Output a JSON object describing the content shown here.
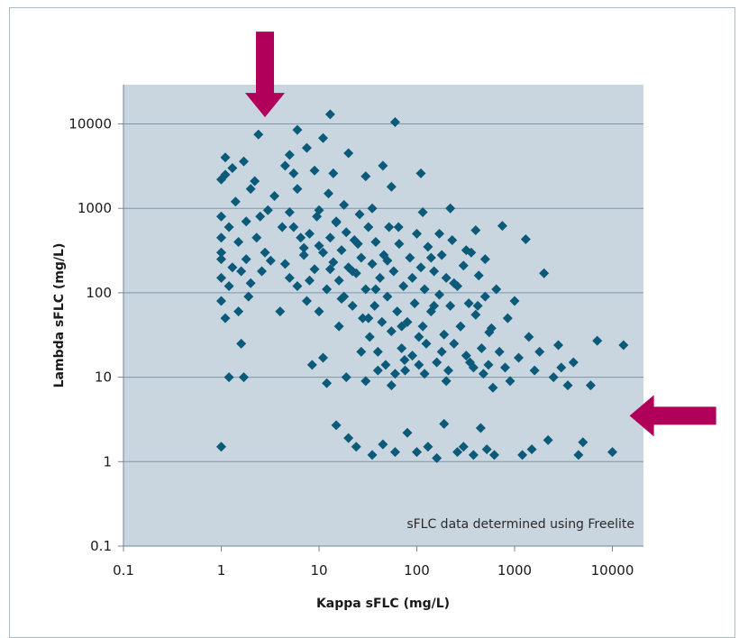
{
  "chart_data": {
    "type": "scatter",
    "title": "",
    "xlabel": "Kappa sFLC (mg/L)",
    "ylabel": "Lambda sFLC (mg/L)",
    "x_scale": "log",
    "y_scale": "log",
    "xlim": [
      0.1,
      20000
    ],
    "ylim": [
      0.1,
      50000
    ],
    "x_ticks": [
      "0.1",
      "1",
      "10",
      "100",
      "1000",
      "10000"
    ],
    "y_ticks": [
      "0.1",
      "1",
      "10",
      "100",
      "1000",
      "10000"
    ],
    "grid": "horizontal",
    "annotation": "sFLC data determined using Freelite",
    "arrows": [
      {
        "direction": "down",
        "points_to": [
          2.8,
          12000
        ]
      },
      {
        "direction": "left",
        "points_to": [
          15000,
          3.5
        ]
      }
    ],
    "colors": {
      "plot_background": "#c9d6df",
      "marker": "#0b5a79",
      "arrow": "#b0005a",
      "gridline": "#7d96aa"
    },
    "series": [
      {
        "marker": "diamond",
        "points": [
          [
            1,
            1.5
          ],
          [
            1,
            80
          ],
          [
            1,
            150
          ],
          [
            1,
            250
          ],
          [
            1,
            300
          ],
          [
            1,
            450
          ],
          [
            1,
            800
          ],
          [
            1,
            2200
          ],
          [
            1.1,
            2500
          ],
          [
            1.1,
            4000
          ],
          [
            1.1,
            50
          ],
          [
            1.2,
            10
          ],
          [
            1.2,
            120
          ],
          [
            1.2,
            600
          ],
          [
            1.3,
            200
          ],
          [
            1.3,
            3000
          ],
          [
            1.4,
            1200
          ],
          [
            1.5,
            400
          ],
          [
            1.5,
            60
          ],
          [
            1.6,
            25
          ],
          [
            1.6,
            180
          ],
          [
            1.7,
            10
          ],
          [
            1.7,
            3600
          ],
          [
            1.8,
            700
          ],
          [
            1.8,
            250
          ],
          [
            1.9,
            90
          ],
          [
            2,
            1700
          ],
          [
            2,
            130
          ],
          [
            2.2,
            2100
          ],
          [
            2.3,
            450
          ],
          [
            2.4,
            7500
          ],
          [
            2.5,
            800
          ],
          [
            2.6,
            180
          ],
          [
            2.8,
            300
          ],
          [
            3,
            950
          ],
          [
            3.2,
            240
          ],
          [
            3.5,
            1400
          ],
          [
            4,
            60
          ],
          [
            4.2,
            600
          ],
          [
            4.5,
            3200
          ],
          [
            5,
            4300
          ],
          [
            5,
            900
          ],
          [
            5,
            150
          ],
          [
            5.5,
            2600
          ],
          [
            6,
            8500
          ],
          [
            6,
            1700
          ],
          [
            6.5,
            450
          ],
          [
            7,
            280
          ],
          [
            7.5,
            5200
          ],
          [
            8,
            140
          ],
          [
            8.5,
            14
          ],
          [
            9,
            2800
          ],
          [
            9.5,
            800
          ],
          [
            10,
            360
          ],
          [
            10,
            60
          ],
          [
            11,
            6800
          ],
          [
            11,
            17
          ],
          [
            12,
            8.5
          ],
          [
            12.5,
            1500
          ],
          [
            13,
            13000
          ],
          [
            13,
            190
          ],
          [
            14,
            2600
          ],
          [
            15,
            700
          ],
          [
            15,
            2.7
          ],
          [
            16,
            40
          ],
          [
            17,
            85
          ],
          [
            18,
            1100
          ],
          [
            19,
            10
          ],
          [
            20,
            4500
          ],
          [
            20,
            1.9
          ],
          [
            22,
            180
          ],
          [
            24,
            1.5
          ],
          [
            25,
            380
          ],
          [
            27,
            20
          ],
          [
            30,
            2400
          ],
          [
            30,
            9
          ],
          [
            32,
            50
          ],
          [
            35,
            1000
          ],
          [
            35,
            1.2
          ],
          [
            38,
            110
          ],
          [
            40,
            12
          ],
          [
            45,
            3200
          ],
          [
            45,
            1.6
          ],
          [
            50,
            240
          ],
          [
            55,
            1800
          ],
          [
            55,
            8
          ],
          [
            60,
            10500
          ],
          [
            60,
            1.3
          ],
          [
            65,
            600
          ],
          [
            70,
            40
          ],
          [
            75,
            16
          ],
          [
            80,
            2.2
          ],
          [
            90,
            150
          ],
          [
            100,
            1.3
          ],
          [
            105,
            30
          ],
          [
            110,
            2600
          ],
          [
            115,
            900
          ],
          [
            120,
            11
          ],
          [
            130,
            1.5
          ],
          [
            140,
            260
          ],
          [
            150,
            70
          ],
          [
            160,
            1.1
          ],
          [
            170,
            500
          ],
          [
            180,
            20
          ],
          [
            190,
            2.8
          ],
          [
            200,
            9
          ],
          [
            220,
            1000
          ],
          [
            240,
            130
          ],
          [
            260,
            1.3
          ],
          [
            280,
            40
          ],
          [
            300,
            1.5
          ],
          [
            320,
            320
          ],
          [
            350,
            15
          ],
          [
            380,
            1.2
          ],
          [
            400,
            550
          ],
          [
            420,
            70
          ],
          [
            450,
            2.5
          ],
          [
            480,
            11
          ],
          [
            500,
            250
          ],
          [
            520,
            1.4
          ],
          [
            550,
            34
          ],
          [
            600,
            7.5
          ],
          [
            620,
            1.2
          ],
          [
            650,
            110
          ],
          [
            700,
            20
          ],
          [
            750,
            620
          ],
          [
            800,
            13
          ],
          [
            850,
            50
          ],
          [
            900,
            9
          ],
          [
            1000,
            80
          ],
          [
            1100,
            17
          ],
          [
            1200,
            1.2
          ],
          [
            1300,
            430
          ],
          [
            1400,
            30
          ],
          [
            1500,
            1.4
          ],
          [
            1600,
            12
          ],
          [
            1800,
            20
          ],
          [
            2000,
            170
          ],
          [
            2200,
            1.8
          ],
          [
            2500,
            10
          ],
          [
            2800,
            24
          ],
          [
            3000,
            13
          ],
          [
            3500,
            8
          ],
          [
            4000,
            15
          ],
          [
            4500,
            1.2
          ],
          [
            5000,
            1.7
          ],
          [
            6000,
            8
          ],
          [
            7000,
            27
          ],
          [
            10000,
            1.3
          ],
          [
            13000,
            24
          ]
        ],
        "dense_cluster_points": [
          [
            4.5,
            220
          ],
          [
            5.5,
            600
          ],
          [
            6,
            120
          ],
          [
            7,
            340
          ],
          [
            7.5,
            80
          ],
          [
            8,
            500
          ],
          [
            9,
            190
          ],
          [
            10,
            950
          ],
          [
            11,
            300
          ],
          [
            12,
            110
          ],
          [
            13,
            450
          ],
          [
            14,
            230
          ],
          [
            15,
            680
          ],
          [
            16,
            140
          ],
          [
            17,
            320
          ],
          [
            18,
            90
          ],
          [
            19,
            520
          ],
          [
            20,
            200
          ],
          [
            22,
            70
          ],
          [
            23,
            420
          ],
          [
            24,
            170
          ],
          [
            26,
            850
          ],
          [
            27,
            260
          ],
          [
            28,
            50
          ],
          [
            30,
            110
          ],
          [
            32,
            600
          ],
          [
            33,
            30
          ],
          [
            35,
            220
          ],
          [
            37,
            70
          ],
          [
            38,
            400
          ],
          [
            40,
            20
          ],
          [
            42,
            150
          ],
          [
            44,
            45
          ],
          [
            46,
            280
          ],
          [
            48,
            14
          ],
          [
            50,
            90
          ],
          [
            52,
            600
          ],
          [
            55,
            35
          ],
          [
            58,
            180
          ],
          [
            60,
            11
          ],
          [
            63,
            60
          ],
          [
            66,
            380
          ],
          [
            70,
            22
          ],
          [
            73,
            120
          ],
          [
            76,
            12
          ],
          [
            80,
            45
          ],
          [
            85,
            260
          ],
          [
            90,
            18
          ],
          [
            95,
            75
          ],
          [
            100,
            500
          ],
          [
            105,
            14
          ],
          [
            110,
            200
          ],
          [
            115,
            40
          ],
          [
            120,
            110
          ],
          [
            125,
            25
          ],
          [
            130,
            350
          ],
          [
            140,
            60
          ],
          [
            150,
            180
          ],
          [
            160,
            15
          ],
          [
            170,
            95
          ],
          [
            180,
            280
          ],
          [
            190,
            32
          ],
          [
            200,
            150
          ],
          [
            210,
            12
          ],
          [
            220,
            70
          ],
          [
            230,
            420
          ],
          [
            240,
            25
          ],
          [
            260,
            120
          ],
          [
            280,
            40
          ],
          [
            300,
            210
          ],
          [
            320,
            18
          ],
          [
            340,
            75
          ],
          [
            360,
            300
          ],
          [
            380,
            13
          ],
          [
            400,
            55
          ],
          [
            430,
            160
          ],
          [
            460,
            22
          ],
          [
            500,
            90
          ],
          [
            540,
            14
          ],
          [
            580,
            38
          ]
        ]
      }
    ]
  }
}
